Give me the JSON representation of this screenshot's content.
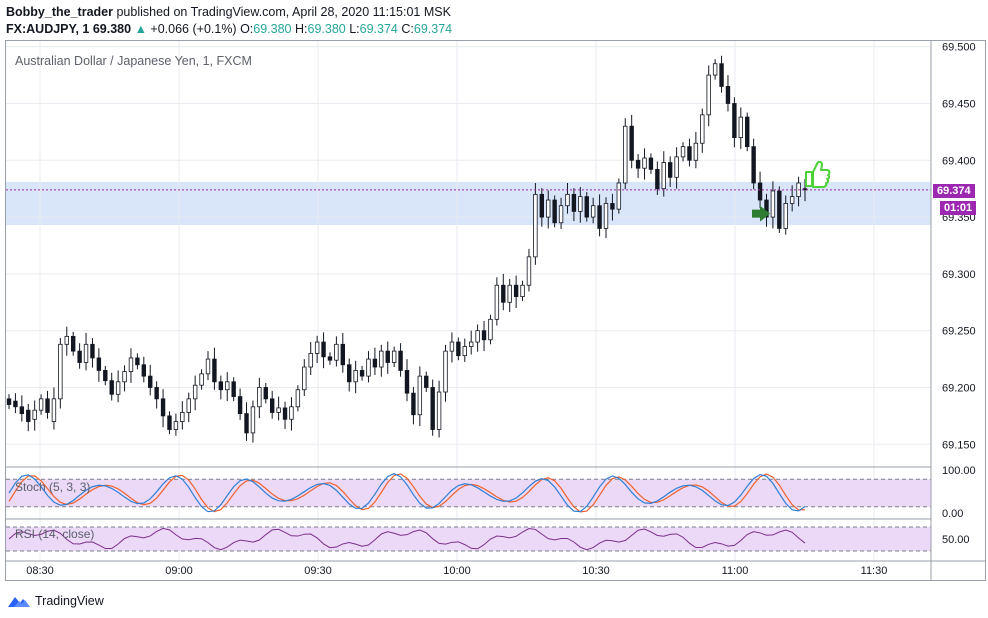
{
  "header": {
    "author": "Bobby_the_trader",
    "published": "published on TradingView.com, April 28, 2020 11:15:01 MSK",
    "symbol": "FX:AUDJPY, 1",
    "last": "69.380",
    "change": "+0.066 (+0.1%)",
    "o_label": "O:",
    "o_val": "69.380",
    "h_label": "H:",
    "h_val": "69.380",
    "l_label": "L:",
    "l_val": "69.374",
    "c_label": "C:",
    "c_val": "69.374"
  },
  "legend": {
    "main": "Australian Dollar / Japanese Yen, 1, FXCM",
    "stoch": "Stoch (5, 3, 3)",
    "rsi": "RSI (14, close)"
  },
  "price_tag": {
    "value": "69.374",
    "countdown": "01:01"
  },
  "footer": {
    "brand": "TradingView"
  },
  "colors": {
    "candle": "#131722",
    "zone": "#cfe0f7",
    "indicator_band": "#ecd9f7",
    "stoch_k": "#2e7fd6",
    "stoch_d": "#f0622d",
    "rsi": "#7b2f8c",
    "price_tag": "#9c27b0",
    "up_text": "#26a69a",
    "thumb": "#4cd137",
    "arrow": "#2e7d32"
  },
  "icons": {
    "brand_logo": "tradingview-logo-icon",
    "thumb": "thumbs-up-icon",
    "arrow": "right-arrow-icon"
  },
  "chart_data": {
    "type": "candlestick",
    "ylim": [
      69.13,
      69.505
    ],
    "y_ticks": [
      "69.150",
      "69.200",
      "69.250",
      "69.300",
      "69.350",
      "69.400",
      "69.450",
      "69.500"
    ],
    "x_ticks": [
      "08:30",
      "09:00",
      "09:30",
      "10:00",
      "10:30",
      "11:00",
      "11:30"
    ],
    "zone": [
      69.343,
      69.381
    ],
    "last_price": 69.374,
    "stoch_ticks": [
      "100.00",
      "0.00"
    ],
    "stoch_bands": [
      80,
      20
    ],
    "rsi_ticks": [
      "50.00"
    ],
    "rsi_bands": [
      70,
      30
    ],
    "candles": [
      [
        69.19,
        69.185
      ],
      [
        69.188,
        69.183
      ],
      [
        69.183,
        69.177
      ],
      [
        69.18,
        69.17
      ],
      [
        69.172,
        69.18
      ],
      [
        69.18,
        69.19
      ],
      [
        69.19,
        69.178
      ],
      [
        69.17,
        69.19
      ],
      [
        69.19,
        69.238
      ],
      [
        69.238,
        69.245
      ],
      [
        69.245,
        69.232
      ],
      [
        69.232,
        69.222
      ],
      [
        69.222,
        69.238
      ],
      [
        69.238,
        69.226
      ],
      [
        69.226,
        69.215
      ],
      [
        69.215,
        69.206
      ],
      [
        69.206,
        69.194
      ],
      [
        69.194,
        69.205
      ],
      [
        69.205,
        69.214
      ],
      [
        69.214,
        69.226
      ],
      [
        69.226,
        69.22
      ],
      [
        69.22,
        69.21
      ],
      [
        69.21,
        69.2
      ],
      [
        69.2,
        69.19
      ],
      [
        69.19,
        69.175
      ],
      [
        69.175,
        69.163
      ],
      [
        69.163,
        69.17
      ],
      [
        69.17,
        69.178
      ],
      [
        69.178,
        69.19
      ],
      [
        69.19,
        69.202
      ],
      [
        69.202,
        69.212
      ],
      [
        69.212,
        69.225
      ],
      [
        69.225,
        69.205
      ],
      [
        69.205,
        69.198
      ],
      [
        69.198,
        69.205
      ],
      [
        69.205,
        69.192
      ],
      [
        69.192,
        69.177
      ],
      [
        69.177,
        69.16
      ],
      [
        69.16,
        69.183
      ],
      [
        69.183,
        69.2
      ],
      [
        69.2,
        69.19
      ],
      [
        69.19,
        69.178
      ],
      [
        69.178,
        69.182
      ],
      [
        69.182,
        69.172
      ],
      [
        69.172,
        69.183
      ],
      [
        69.183,
        69.198
      ],
      [
        69.198,
        69.218
      ],
      [
        69.218,
        69.23
      ],
      [
        69.23,
        69.24
      ],
      [
        69.24,
        69.227
      ],
      [
        69.227,
        69.224
      ],
      [
        69.224,
        69.238
      ],
      [
        69.238,
        69.22
      ],
      [
        69.22,
        69.205
      ],
      [
        69.205,
        69.215
      ],
      [
        69.215,
        69.21
      ],
      [
        69.21,
        69.225
      ],
      [
        69.225,
        69.218
      ],
      [
        69.218,
        69.232
      ],
      [
        69.232,
        69.222
      ],
      [
        69.222,
        69.232
      ],
      [
        69.232,
        69.215
      ],
      [
        69.215,
        69.195
      ],
      [
        69.195,
        69.176
      ],
      [
        69.176,
        69.21
      ],
      [
        69.21,
        69.2
      ],
      [
        69.2,
        69.163
      ],
      [
        69.163,
        69.196
      ],
      [
        69.196,
        69.232
      ],
      [
        69.232,
        69.24
      ],
      [
        69.24,
        69.228
      ],
      [
        69.228,
        69.236
      ],
      [
        69.236,
        69.24
      ],
      [
        69.24,
        69.25
      ],
      [
        69.25,
        69.242
      ],
      [
        69.242,
        69.26
      ],
      [
        69.26,
        69.29
      ],
      [
        69.29,
        69.275
      ],
      [
        69.275,
        69.29
      ],
      [
        69.29,
        69.28
      ],
      [
        69.28,
        69.29
      ],
      [
        69.29,
        69.315
      ],
      [
        69.315,
        69.37
      ],
      [
        69.37,
        69.35
      ],
      [
        69.35,
        69.365
      ],
      [
        69.365,
        69.345
      ],
      [
        69.345,
        69.36
      ],
      [
        69.36,
        69.37
      ],
      [
        69.37,
        69.355
      ],
      [
        69.355,
        69.368
      ],
      [
        69.368,
        69.35
      ],
      [
        69.35,
        69.36
      ],
      [
        69.36,
        69.34
      ],
      [
        69.34,
        69.362
      ],
      [
        69.362,
        69.357
      ],
      [
        69.357,
        69.38
      ],
      [
        69.38,
        69.43
      ],
      [
        69.43,
        69.4
      ],
      [
        69.4,
        69.393
      ],
      [
        69.393,
        69.402
      ],
      [
        69.402,
        69.392
      ],
      [
        69.392,
        69.375
      ],
      [
        69.375,
        69.398
      ],
      [
        69.398,
        69.385
      ],
      [
        69.385,
        69.403
      ],
      [
        69.403,
        69.412
      ],
      [
        69.412,
        69.4
      ],
      [
        69.4,
        69.415
      ],
      [
        69.415,
        69.44
      ],
      [
        69.44,
        69.475
      ],
      [
        69.475,
        69.485
      ],
      [
        69.485,
        69.465
      ],
      [
        69.465,
        69.45
      ],
      [
        69.45,
        69.42
      ],
      [
        69.42,
        69.438
      ],
      [
        69.438,
        69.412
      ],
      [
        69.412,
        69.38
      ],
      [
        69.38,
        69.365
      ],
      [
        69.365,
        69.35
      ],
      [
        69.35,
        69.373
      ],
      [
        69.373,
        69.34
      ],
      [
        69.34,
        69.362
      ],
      [
        69.362,
        69.368
      ],
      [
        69.368,
        69.38
      ],
      [
        69.375,
        69.374
      ]
    ]
  }
}
